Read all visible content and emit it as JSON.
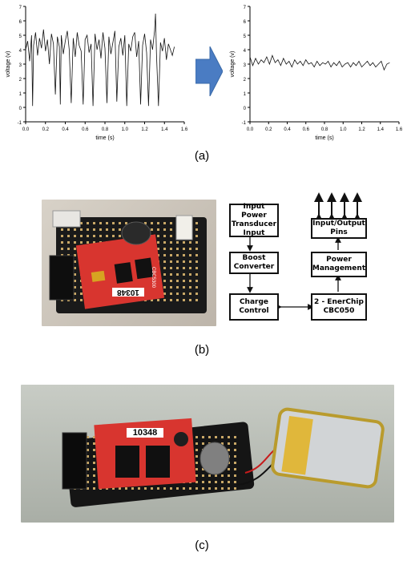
{
  "captions": {
    "a": "(a)",
    "b": "(b)",
    "c": "(c)"
  },
  "chart_data": [
    {
      "type": "line",
      "title": "",
      "xlabel": "time (s)",
      "ylabel": "voltage (v)",
      "xlim": [
        0,
        1.6
      ],
      "ylim": [
        -1,
        7
      ],
      "xticks": [
        "0.0",
        "0.2",
        "0.4",
        "0.6",
        "0.8",
        "1.0",
        "1.2",
        "1.4",
        "1.6"
      ],
      "yticks": [
        "-1",
        "0",
        "1",
        "2",
        "3",
        "4",
        "5",
        "6",
        "7"
      ],
      "series_summary": "noisy voltage around 4 V with frequent downward spikes to ~0 V and a peak near 6.5 V at 1.31 s",
      "x": [
        0.0,
        0.02,
        0.04,
        0.06,
        0.07,
        0.08,
        0.1,
        0.12,
        0.14,
        0.16,
        0.18,
        0.2,
        0.22,
        0.24,
        0.26,
        0.28,
        0.3,
        0.32,
        0.34,
        0.35,
        0.36,
        0.38,
        0.4,
        0.42,
        0.44,
        0.46,
        0.48,
        0.5,
        0.52,
        0.54,
        0.56,
        0.58,
        0.6,
        0.62,
        0.64,
        0.66,
        0.68,
        0.7,
        0.72,
        0.74,
        0.76,
        0.78,
        0.8,
        0.82,
        0.84,
        0.86,
        0.88,
        0.9,
        0.92,
        0.94,
        0.96,
        0.98,
        1.0,
        1.02,
        1.04,
        1.06,
        1.08,
        1.1,
        1.12,
        1.14,
        1.16,
        1.18,
        1.2,
        1.22,
        1.24,
        1.26,
        1.28,
        1.3,
        1.31,
        1.32,
        1.34,
        1.36,
        1.38,
        1.4,
        1.42,
        1.44,
        1.46,
        1.48,
        1.5
      ],
      "values": [
        4.0,
        4.6,
        3.2,
        5.0,
        0.1,
        4.3,
        5.2,
        3.6,
        4.8,
        4.1,
        5.4,
        3.9,
        4.7,
        3.0,
        5.1,
        4.4,
        0.9,
        4.9,
        4.2,
        0.2,
        5.0,
        3.7,
        4.6,
        5.3,
        4.0,
        0.3,
        4.8,
        3.5,
        5.2,
        4.3,
        3.9,
        0.2,
        4.7,
        5.0,
        3.8,
        4.4,
        0.1,
        5.1,
        4.0,
        4.7,
        3.4,
        5.2,
        4.1,
        0.3,
        4.9,
        3.7,
        4.5,
        5.3,
        0.4,
        4.2,
        4.8,
        3.6,
        5.0,
        0.1,
        4.4,
        3.9,
        4.9,
        5.2,
        3.5,
        4.6,
        0.2,
        4.3,
        5.1,
        3.8,
        0.1,
        4.7,
        4.0,
        5.3,
        6.5,
        3.7,
        0.1,
        4.5,
        3.9,
        4.8,
        3.3,
        4.4,
        4.0,
        3.6,
        4.2
      ]
    },
    {
      "type": "line",
      "title": "",
      "xlabel": "time (s)",
      "ylabel": "voltage (v)",
      "xlim": [
        0,
        1.6
      ],
      "ylim": [
        -1,
        7
      ],
      "xticks": [
        "0.0",
        "0.2",
        "0.4",
        "0.6",
        "0.8",
        "1.0",
        "1.2",
        "1.4",
        "1.6"
      ],
      "yticks": [
        "-1",
        "0",
        "1",
        "2",
        "3",
        "4",
        "5",
        "6",
        "7"
      ],
      "series_summary": "smoothed voltage slowly decreasing from ~3.3 V to ~3.0 V",
      "x": [
        0.0,
        0.03,
        0.06,
        0.09,
        0.12,
        0.15,
        0.18,
        0.21,
        0.24,
        0.27,
        0.3,
        0.33,
        0.36,
        0.39,
        0.42,
        0.45,
        0.48,
        0.51,
        0.54,
        0.57,
        0.6,
        0.63,
        0.66,
        0.69,
        0.72,
        0.75,
        0.78,
        0.81,
        0.84,
        0.87,
        0.9,
        0.93,
        0.96,
        0.99,
        1.02,
        1.05,
        1.08,
        1.11,
        1.14,
        1.17,
        1.2,
        1.23,
        1.26,
        1.29,
        1.32,
        1.35,
        1.38,
        1.41,
        1.44,
        1.47,
        1.5
      ],
      "values": [
        3.5,
        2.9,
        3.4,
        3.0,
        3.3,
        3.1,
        3.5,
        3.0,
        3.6,
        3.1,
        3.3,
        2.9,
        3.4,
        3.0,
        3.2,
        2.8,
        3.3,
        3.0,
        3.2,
        2.9,
        3.3,
        3.0,
        3.1,
        2.8,
        3.2,
        2.9,
        3.1,
        3.0,
        3.2,
        2.8,
        3.1,
        2.9,
        3.2,
        2.8,
        3.0,
        3.1,
        2.8,
        3.1,
        2.9,
        3.2,
        2.8,
        3.0,
        3.2,
        2.9,
        3.1,
        2.8,
        3.0,
        3.2,
        2.6,
        3.0,
        3.1
      ]
    }
  ],
  "diagram": {
    "blocks": {
      "transducer": "Input Power\nTransducer\nInput",
      "boost": "Boost\nConverter",
      "charge": "Charge\nControl",
      "io": "Input/Output\nPins",
      "power": "Power\nManagement",
      "enerchip": "2 - EnerChip\nCBC050"
    }
  },
  "photo_b": {
    "label": "10348",
    "side_text": "CBC5300"
  },
  "photo_c": {
    "label": "10348"
  }
}
